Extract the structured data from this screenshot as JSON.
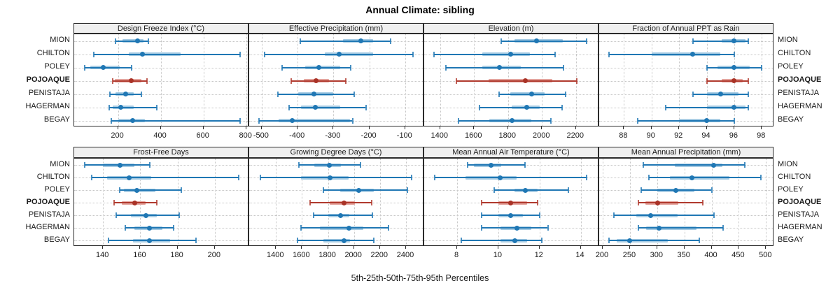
{
  "title": "Annual Climate: sibling",
  "caption": "5th-25th-50th-75th-95th Percentiles",
  "sites": [
    "MION",
    "CHILTON",
    "POLEY",
    "POJOAQUE",
    "PENISTAJA",
    "HAGERMAN",
    "BEGAY"
  ],
  "highlighted_site": "POJOAQUE",
  "percentile_labels": [
    "5th",
    "25th",
    "50th",
    "75th",
    "95th"
  ],
  "colors": {
    "series_line": "#1f77b4",
    "series_band": "#a6cbe3",
    "series_dot": "#1f77b4",
    "highlight_line": "#b03a2e",
    "highlight_band": "#e4a49d",
    "highlight_dot": "#a93226",
    "grid": "#c6c6c6",
    "panel_border": "#2b2b2b",
    "header_bg": "#f0f0f0"
  },
  "chart_data": [
    {
      "type": "errorbar",
      "title": "Design Freeze Index (°C)",
      "row": 0,
      "col": 0,
      "xlim": [
        -5,
        814
      ],
      "tick_values": [
        200,
        400,
        600,
        800
      ],
      "tick_labels": [
        "200",
        "400",
        "600",
        "800"
      ],
      "values": [
        [
          188,
          222,
          292,
          321,
          343
        ],
        [
          86,
          250,
          314,
          493,
          772
        ],
        [
          45,
          69,
          130,
          209,
          264
        ],
        [
          175,
          185,
          263,
          310,
          335
        ],
        [
          161,
          189,
          236,
          275,
          310
        ],
        [
          158,
          176,
          214,
          272,
          380
        ],
        [
          167,
          200,
          270,
          325,
          772
        ]
      ]
    },
    {
      "type": "errorbar",
      "title": "Effective Precipitation (mm)",
      "row": 0,
      "col": 1,
      "xlim": [
        -535,
        -47
      ],
      "tick_values": [
        -500,
        -400,
        -300,
        -200,
        -100
      ],
      "tick_labels": [
        "-500",
        "-400",
        "-300",
        "-200",
        "-100"
      ],
      "values": [
        [
          -393,
          -273,
          -224,
          -190,
          -141
        ],
        [
          -493,
          -324,
          -284,
          -190,
          -79
        ],
        [
          -444,
          -379,
          -340,
          -281,
          -252
        ],
        [
          -418,
          -382,
          -348,
          -313,
          -265
        ],
        [
          -456,
          -398,
          -355,
          -301,
          -243
        ],
        [
          -423,
          -391,
          -351,
          -281,
          -210
        ],
        [
          -508,
          -454,
          -415,
          -254,
          -247
        ]
      ]
    },
    {
      "type": "errorbar",
      "title": "Elevation (m)",
      "row": 0,
      "col": 2,
      "xlim": [
        1306,
        2337
      ],
      "tick_values": [
        1400,
        1600,
        1800,
        2000,
        2200
      ],
      "tick_labels": [
        "1400",
        "1600",
        "1800",
        "2000",
        "2200"
      ],
      "values": [
        [
          1760,
          1836,
          1969,
          2124,
          2264
        ],
        [
          1364,
          1650,
          1815,
          1929,
          2079
        ],
        [
          1434,
          1650,
          1749,
          1877,
          2128
        ],
        [
          1495,
          1684,
          1900,
          2062,
          2204
        ],
        [
          1749,
          1815,
          1939,
          2014,
          2138
        ],
        [
          1633,
          1822,
          1911,
          1987,
          2118
        ],
        [
          1506,
          1691,
          1822,
          1939,
          2052
        ]
      ]
    },
    {
      "type": "errorbar",
      "title": "Fraction of Annual PPT as Rain",
      "row": 0,
      "col": 3,
      "xlim": [
        86.2,
        98.9
      ],
      "tick_values": [
        88,
        90,
        92,
        94,
        96,
        98
      ],
      "tick_labels": [
        "88",
        "90",
        "92",
        "94",
        "96",
        "98"
      ],
      "values": [
        [
          93,
          95.1,
          96,
          96.8,
          97
        ],
        [
          86.9,
          90,
          93,
          95,
          96
        ],
        [
          94,
          94.8,
          96,
          97.1,
          98
        ],
        [
          94,
          95.1,
          96,
          96.6,
          97
        ],
        [
          93,
          94,
          95,
          96.3,
          97
        ],
        [
          91,
          94,
          96,
          96.8,
          97
        ],
        [
          89,
          92,
          94,
          95,
          96
        ]
      ]
    },
    {
      "type": "errorbar",
      "title": "Frost-Free Days",
      "row": 1,
      "col": 0,
      "xlim": [
        124.5,
        218.5
      ],
      "tick_values": [
        140,
        160,
        180,
        200
      ],
      "tick_labels": [
        "140",
        "160",
        "180",
        "200"
      ],
      "values": [
        [
          130,
          140,
          149,
          157,
          165
        ],
        [
          134,
          142,
          154,
          166,
          213
        ],
        [
          149,
          151,
          158,
          168,
          182
        ],
        [
          146,
          150,
          157,
          163,
          169
        ],
        [
          147,
          155,
          163,
          169,
          181
        ],
        [
          152,
          157,
          165,
          172,
          178
        ],
        [
          143,
          156,
          165,
          176,
          190
        ]
      ]
    },
    {
      "type": "errorbar",
      "title": "Growing Degree Days (°C)",
      "row": 1,
      "col": 1,
      "xlim": [
        1194,
        2540
      ],
      "tick_values": [
        1400,
        1600,
        1800,
        2000,
        2200,
        2400
      ],
      "tick_labels": [
        "1400",
        "1600",
        "1800",
        "2000",
        "2200",
        "2400"
      ],
      "values": [
        [
          1578,
          1695,
          1811,
          1900,
          2052
        ],
        [
          1279,
          1591,
          1814,
          1959,
          2445
        ],
        [
          1763,
          1891,
          2034,
          2150,
          2413
        ],
        [
          1664,
          1811,
          1923,
          2007,
          2138
        ],
        [
          1691,
          1802,
          1896,
          1963,
          2141
        ],
        [
          1591,
          1739,
          1959,
          2070,
          2266
        ],
        [
          1564,
          1766,
          1923,
          1971,
          2154
        ]
      ]
    },
    {
      "type": "errorbar",
      "title": "Mean Annual Air Temperature (°C)",
      "row": 1,
      "col": 2,
      "xlim": [
        6.4,
        14.9
      ],
      "tick_values": [
        8,
        10,
        12,
        14
      ],
      "tick_labels": [
        "8",
        "10",
        "12",
        "14"
      ],
      "values": [
        [
          8.5,
          8.8,
          9.65,
          10.15,
          11.3
        ],
        [
          6.9,
          8.4,
          10.1,
          10.9,
          14.3
        ],
        [
          9.8,
          10.8,
          11.3,
          11.9,
          13.4
        ],
        [
          9.2,
          10.0,
          10.6,
          11.4,
          11.9
        ],
        [
          9.2,
          10.0,
          10.6,
          11.2,
          12.0
        ],
        [
          9.2,
          10.1,
          10.9,
          11.6,
          12.4
        ],
        [
          8.2,
          10.1,
          10.8,
          11.4,
          12.1
        ]
      ]
    },
    {
      "type": "errorbar",
      "title": "Mean Annual Precipitation (mm)",
      "row": 1,
      "col": 3,
      "xlim": [
        193.6,
        515
      ],
      "tick_values": [
        200,
        250,
        300,
        350,
        400,
        450,
        500
      ],
      "tick_labels": [
        "200",
        "250",
        "300",
        "350",
        "400",
        "450",
        "500"
      ],
      "values": [
        [
          274,
          333,
          404,
          420,
          461
        ],
        [
          285,
          324,
          364,
          433,
          491
        ],
        [
          271,
          300,
          334,
          368,
          400
        ],
        [
          266,
          279,
          301,
          339,
          384
        ],
        [
          221,
          262,
          288,
          338,
          404
        ],
        [
          266,
          280,
          303,
          373,
          421
        ],
        [
          211,
          226,
          250,
          320,
          377
        ]
      ]
    }
  ]
}
